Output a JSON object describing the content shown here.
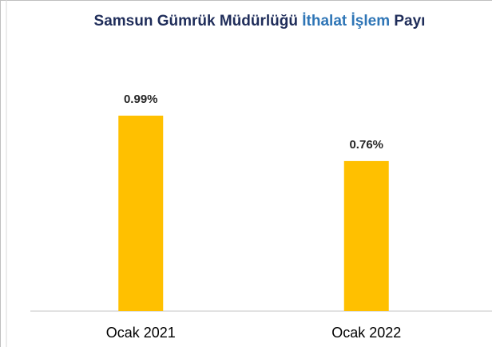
{
  "chart_data": {
    "type": "bar",
    "title_parts": [
      {
        "text": "Samsun Gümrük Müdürlüğü",
        "color": "#1f2d5a"
      },
      {
        "text": "İthalat İşlem",
        "color": "#2e75b6"
      },
      {
        "text": "Payı",
        "color": "#1f2d5a"
      }
    ],
    "categories": [
      "Ocak 2021",
      "Ocak 2022"
    ],
    "values": [
      0.99,
      0.76
    ],
    "value_labels": [
      "0.99%",
      "0.76%"
    ],
    "color": "#ffc000"
  }
}
